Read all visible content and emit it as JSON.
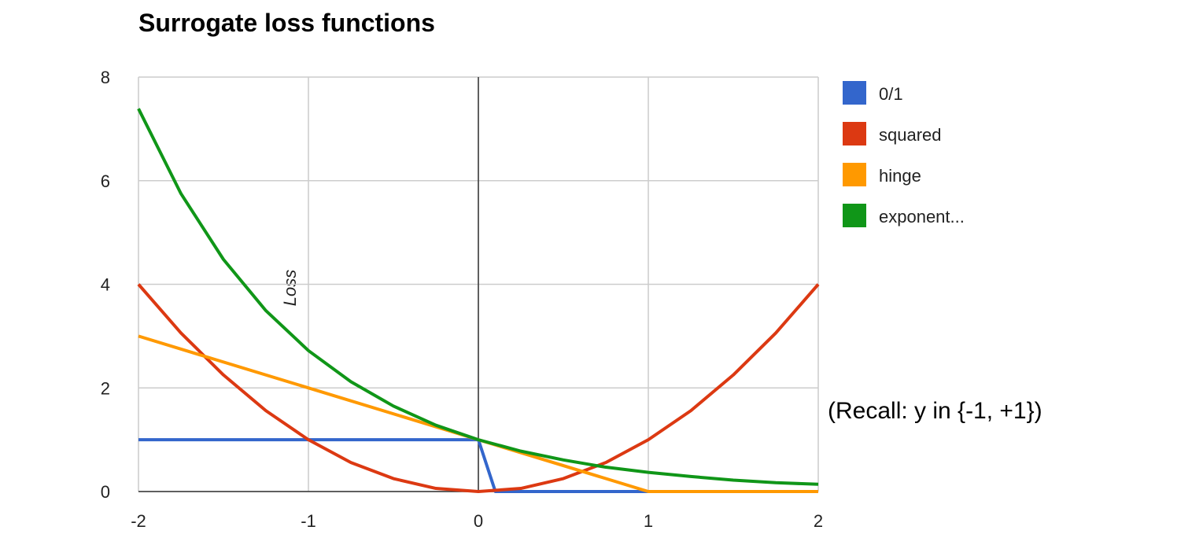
{
  "chart_data": {
    "type": "line",
    "title": "Surrogate loss functions",
    "xlabel": "",
    "ylabel": "Loss",
    "xlim": [
      -2,
      2
    ],
    "ylim": [
      0,
      8
    ],
    "x_ticks": [
      "-2",
      "-1",
      "0",
      "1",
      "2"
    ],
    "y_ticks": [
      "0",
      "2",
      "4",
      "6",
      "8"
    ],
    "grid": true,
    "legend_position": "right",
    "series": [
      {
        "name": "0/1",
        "color": "#3366cc",
        "x": [
          -2,
          0,
          0.1,
          2
        ],
        "y": [
          1,
          1,
          0,
          0
        ]
      },
      {
        "name": "squared",
        "color": "#dc3912",
        "x": [
          -2,
          -1.75,
          -1.5,
          -1.25,
          -1,
          -0.75,
          -0.5,
          -0.25,
          0,
          0.25,
          0.5,
          0.75,
          1,
          1.25,
          1.5,
          1.75,
          2
        ],
        "y": [
          4,
          3.06,
          2.25,
          1.56,
          1,
          0.56,
          0.25,
          0.06,
          0,
          0.06,
          0.25,
          0.56,
          1,
          1.56,
          2.25,
          3.06,
          4
        ]
      },
      {
        "name": "hinge",
        "color": "#ff9900",
        "x": [
          -2,
          1,
          2
        ],
        "y": [
          3,
          0,
          0
        ]
      },
      {
        "name": "exponent...",
        "color": "#109618",
        "x": [
          -2,
          -1.75,
          -1.5,
          -1.25,
          -1,
          -0.75,
          -0.5,
          -0.25,
          0,
          0.25,
          0.5,
          0.75,
          1,
          1.25,
          1.5,
          1.75,
          2
        ],
        "y": [
          7.39,
          5.75,
          4.48,
          3.49,
          2.72,
          2.12,
          1.65,
          1.28,
          1,
          0.78,
          0.61,
          0.47,
          0.37,
          0.29,
          0.22,
          0.17,
          0.14
        ]
      }
    ]
  },
  "annotation": "(Recall: y in {-1, +1})"
}
